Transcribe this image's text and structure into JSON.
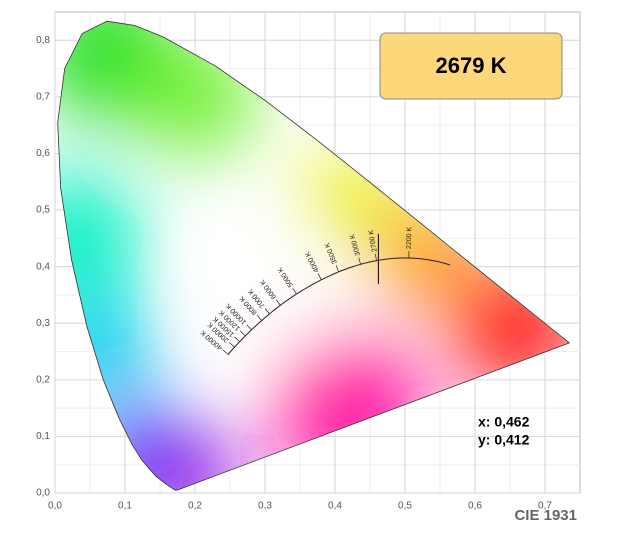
{
  "chart_data": {
    "type": "scatter",
    "x": [
      0.462
    ],
    "values": [
      0.412
    ],
    "annotations": [
      "x: 0,462",
      "y: 0,412"
    ],
    "cct_label": "2679 K",
    "footer": "CIE 1931",
    "xlim": [
      0,
      0.75
    ],
    "ylim": [
      0,
      0.85
    ],
    "xticks": [
      {
        "value": 0,
        "label": "0,0"
      },
      {
        "value": 0.1,
        "label": "0,1"
      },
      {
        "value": 0.2,
        "label": "0,2"
      },
      {
        "value": 0.3,
        "label": "0,3"
      },
      {
        "value": 0.4,
        "label": "0,4"
      },
      {
        "value": 0.5,
        "label": "0,5"
      },
      {
        "value": 0.6,
        "label": "0,6"
      },
      {
        "value": 0.7,
        "label": "0,7"
      }
    ],
    "yticks": [
      {
        "value": 0,
        "label": "0,0"
      },
      {
        "value": 0.1,
        "label": "0,1"
      },
      {
        "value": 0.2,
        "label": "0,2"
      },
      {
        "value": 0.3,
        "label": "0,3"
      },
      {
        "value": 0.4,
        "label": "0,4"
      },
      {
        "value": 0.5,
        "label": "0,5"
      },
      {
        "value": 0.6,
        "label": "0,6"
      },
      {
        "value": 0.7,
        "label": "0,7"
      },
      {
        "value": 0.8,
        "label": "0,8"
      }
    ],
    "grid": true,
    "locus_labels": [
      {
        "value": 40000,
        "label": "40000 K"
      },
      {
        "value": 20000,
        "label": "20000 K"
      },
      {
        "value": 15000,
        "label": "15000 K"
      },
      {
        "value": 12000,
        "label": "12000 K"
      },
      {
        "value": 10000,
        "label": "10000 K"
      },
      {
        "value": 8000,
        "label": "8000 K"
      },
      {
        "value": 7000,
        "label": "7000 K"
      },
      {
        "value": 6000,
        "label": "6000 K"
      },
      {
        "value": 5000,
        "label": "5000 K"
      },
      {
        "value": 4000,
        "label": "4000 K"
      },
      {
        "value": 3500,
        "label": "3500 K"
      },
      {
        "value": 3000,
        "label": "3000 K"
      },
      {
        "value": 2700,
        "label": "2700 K"
      },
      {
        "value": 2200,
        "label": "2200 K"
      }
    ]
  }
}
